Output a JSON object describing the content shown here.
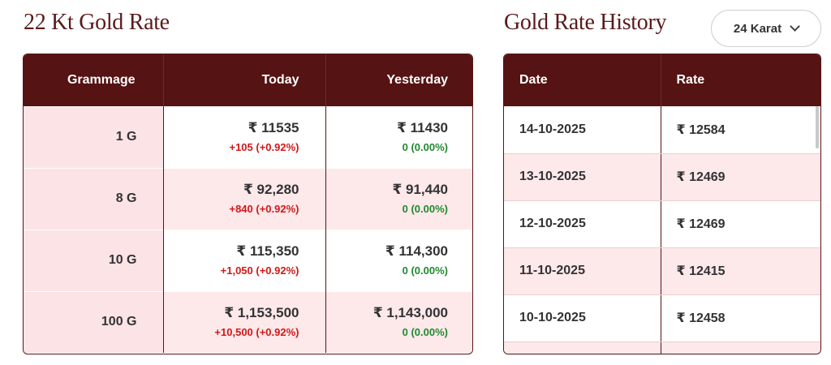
{
  "rates_section": {
    "title": "22 Kt Gold Rate",
    "headers": {
      "grammage": "Grammage",
      "today": "Today",
      "yesterday": "Yesterday"
    },
    "rows": [
      {
        "grammage": "1 G",
        "today": "₹ 11535",
        "today_change": "+105 (+0.92%)",
        "yesterday": "₹ 11430",
        "yesterday_change": "0 (0.00%)"
      },
      {
        "grammage": "8 G",
        "today": "₹ 92,280",
        "today_change": "+840 (+0.92%)",
        "yesterday": "₹ 91,440",
        "yesterday_change": "0 (0.00%)"
      },
      {
        "grammage": "10 G",
        "today": "₹ 115,350",
        "today_change": "+1,050 (+0.92%)",
        "yesterday": "₹ 114,300",
        "yesterday_change": "0 (0.00%)"
      },
      {
        "grammage": "100 G",
        "today": "₹ 1,153,500",
        "today_change": "+10,500 (+0.92%)",
        "yesterday": "₹ 1,143,000",
        "yesterday_change": "0 (0.00%)"
      }
    ]
  },
  "history_section": {
    "title": "Gold Rate History",
    "karat_select": {
      "value": "24 Karat"
    },
    "headers": {
      "date": "Date",
      "rate": "Rate"
    },
    "rows": [
      {
        "date": "14-10-2025",
        "rate": "₹ 12584"
      },
      {
        "date": "13-10-2025",
        "rate": "₹ 12469"
      },
      {
        "date": "12-10-2025",
        "rate": "₹ 12469"
      },
      {
        "date": "11-10-2025",
        "rate": "₹ 12415"
      },
      {
        "date": "10-10-2025",
        "rate": "₹ 12458"
      }
    ]
  },
  "colors": {
    "header_bg": "#561313",
    "title": "#5a1a1a",
    "row_tint": "#fde8ea",
    "increase": "#d01818",
    "no_change": "#1f8a2f"
  }
}
